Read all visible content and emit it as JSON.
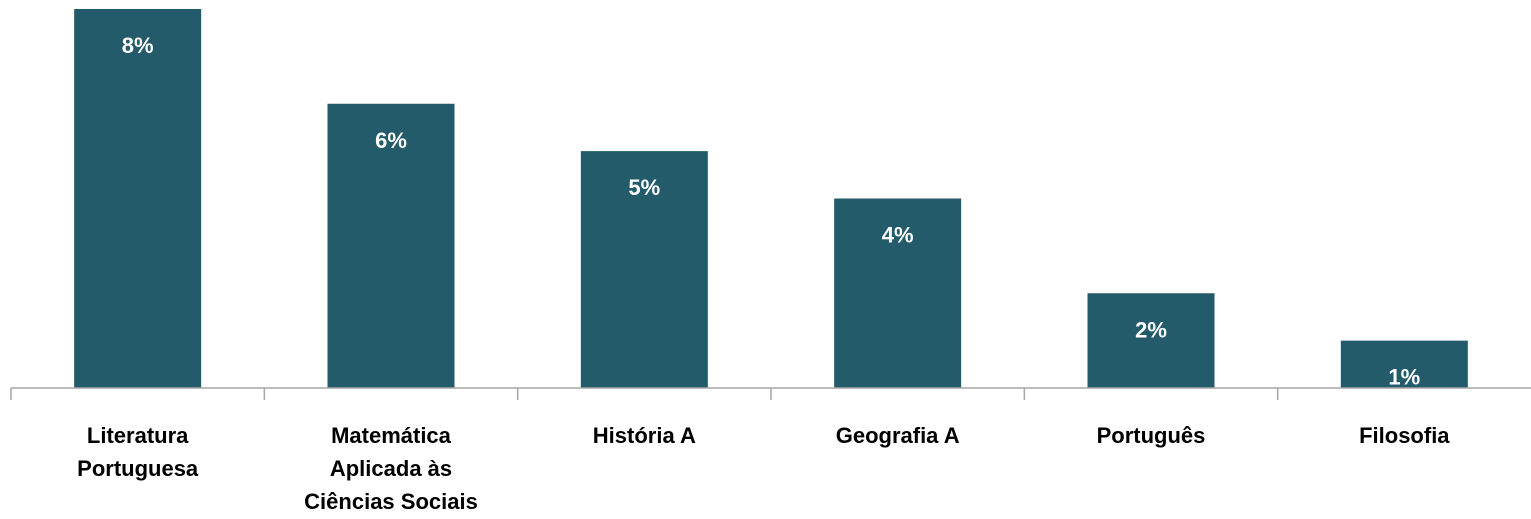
{
  "chart_data": {
    "type": "bar",
    "title": "",
    "xlabel": "",
    "ylabel": "",
    "categories": [
      "Literatura Portuguesa",
      "Matemática Aplicada às Ciências Sociais",
      "História A",
      "Geografia A",
      "Português",
      "Filosofia"
    ],
    "category_lines": [
      [
        "Literatura",
        "Portuguesa"
      ],
      [
        "Matemática",
        "Aplicada às",
        "Ciências Sociais"
      ],
      [
        "História A"
      ],
      [
        "Geografia A"
      ],
      [
        "Português"
      ],
      [
        "Filosofia"
      ]
    ],
    "values": [
      8,
      6,
      5,
      4,
      2,
      1
    ],
    "data_labels": [
      "8%",
      "6%",
      "5%",
      "4%",
      "2%",
      "1%"
    ],
    "unit": "%",
    "ylim": [
      0,
      8
    ],
    "grid": false,
    "legend": "none",
    "bar_color": "#245B6B",
    "axis_color": "#A6A6A6",
    "label_color": "#000000",
    "data_label_color": "#FFFFFF"
  }
}
